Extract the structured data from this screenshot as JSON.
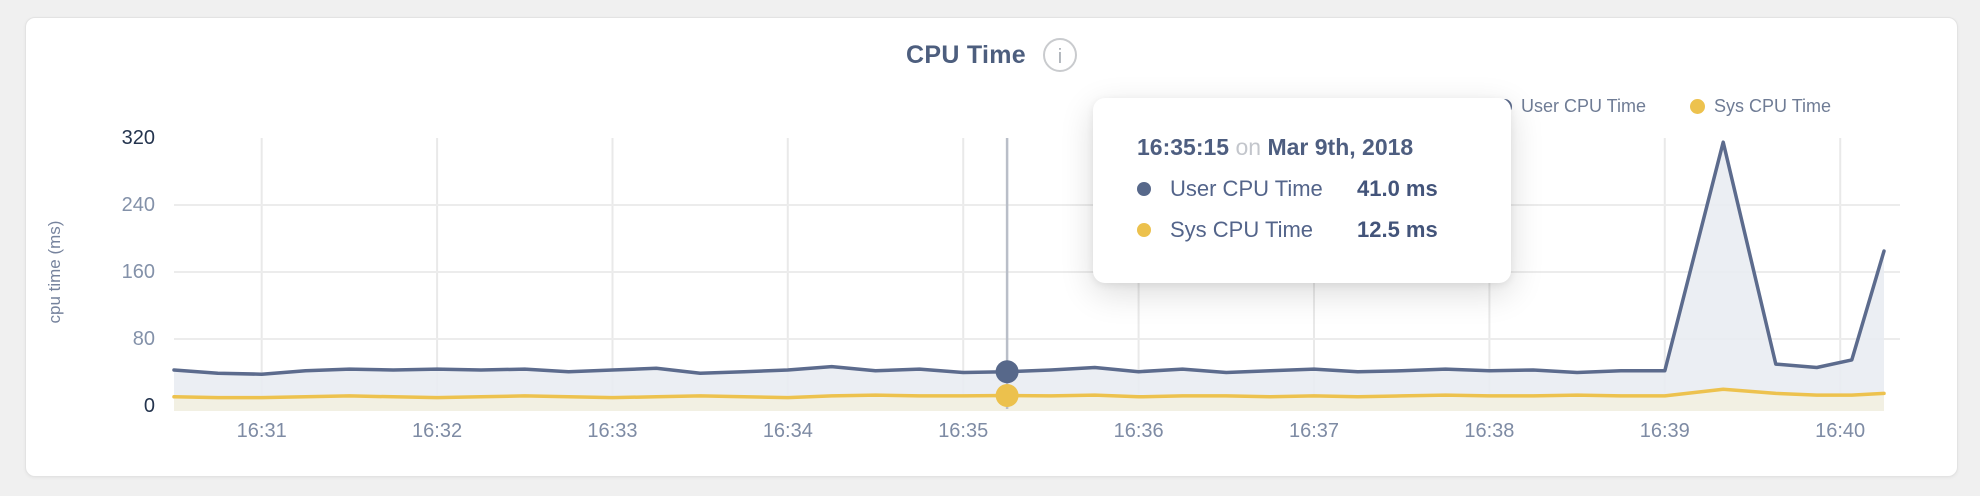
{
  "header": {
    "title": "CPU Time",
    "info_icon_glyph": "i"
  },
  "legend": {
    "items": [
      {
        "label": "User CPU Time",
        "color": "#5c6b8d"
      },
      {
        "label": "Sys CPU Time",
        "color": "#edc24e"
      }
    ]
  },
  "tooltip": {
    "time": "16:35:15",
    "connector": "on",
    "date": "Mar 9th, 2018",
    "rows": [
      {
        "label": "User CPU Time",
        "value": "41.0 ms",
        "color": "#57688a"
      },
      {
        "label": "Sys CPU Time",
        "value": "12.5 ms",
        "color": "#ecc14d"
      }
    ]
  },
  "chart_data": {
    "type": "line",
    "title": "CPU Time",
    "xlabel": "",
    "ylabel": "cpu time (ms)",
    "ylim": [
      0,
      320
    ],
    "y_ticks": [
      0,
      80,
      160,
      240,
      320
    ],
    "x_ticks": [
      "16:31",
      "16:32",
      "16:33",
      "16:34",
      "16:35",
      "16:36",
      "16:37",
      "16:38",
      "16:39",
      "16:40"
    ],
    "grid": true,
    "legend_position": "top-right",
    "x_axis_note": "x values are seconds after 16:30:30, axis ticks at one-minute intervals",
    "x": [
      0,
      15,
      30,
      45,
      60,
      75,
      90,
      105,
      120,
      135,
      150,
      165,
      180,
      195,
      210,
      225,
      240,
      255,
      270,
      285,
      300,
      315,
      330,
      345,
      360,
      375,
      390,
      405,
      420,
      435,
      450,
      465,
      480,
      495,
      510,
      530,
      548,
      562,
      574,
      585
    ],
    "series": [
      {
        "name": "User CPU Time",
        "color": "#5c6b8d",
        "fill": "#e9ecf2",
        "values": [
          43,
          39,
          38,
          42,
          44,
          43,
          44,
          43,
          44,
          41,
          43,
          45,
          39,
          41,
          43,
          47,
          42,
          44,
          40,
          41,
          43,
          46,
          41,
          44,
          40,
          42,
          44,
          41,
          42,
          44,
          42,
          43,
          40,
          42,
          42,
          315,
          50,
          46,
          55,
          185
        ]
      },
      {
        "name": "Sys CPU Time",
        "color": "#edc24e",
        "fill": "#f2efe2",
        "values": [
          11,
          10,
          10,
          11,
          12,
          11,
          10,
          11,
          12,
          11,
          10,
          11,
          12,
          11,
          10,
          12,
          13,
          12,
          12,
          12.5,
          12,
          13,
          11,
          12,
          12,
          11,
          12,
          11,
          12,
          13,
          12,
          12,
          13,
          12,
          12,
          20,
          15,
          13,
          13,
          15
        ]
      }
    ],
    "hover": {
      "index": 19,
      "time": "16:35:15",
      "user_value_ms": 41.0,
      "sys_value_ms": 12.5
    }
  }
}
